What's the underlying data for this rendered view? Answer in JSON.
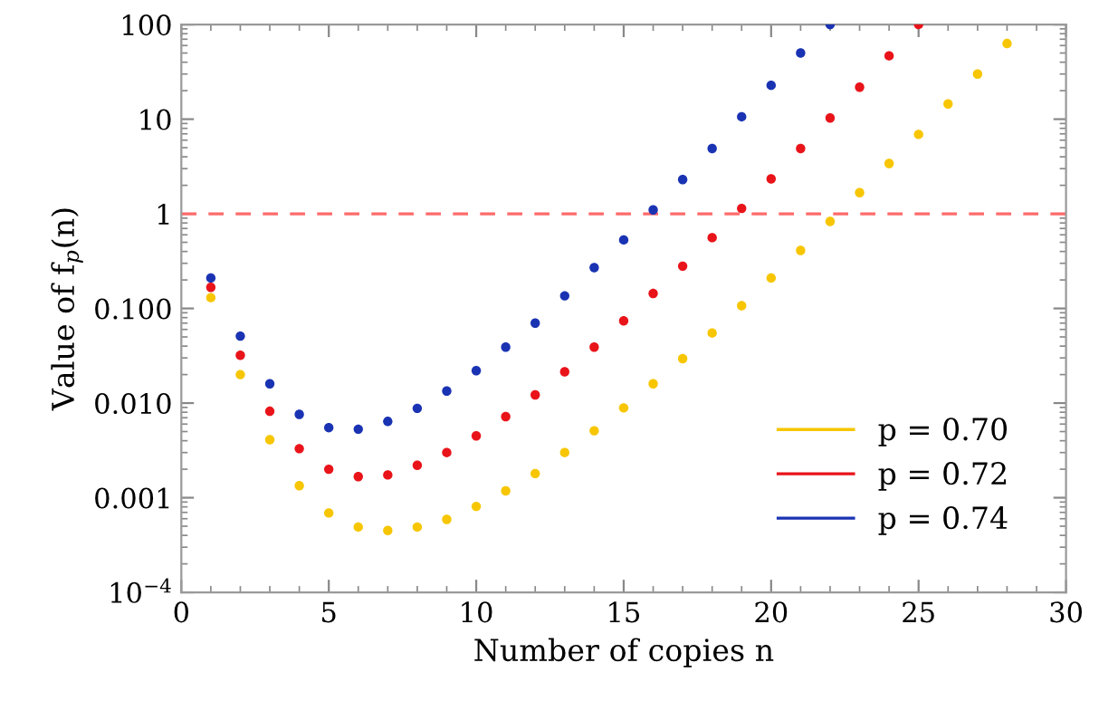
{
  "chart_data": {
    "type": "scatter",
    "xlabel": "Number of copies n",
    "ylabel": "Value of f$_{p}$(n)",
    "log": "y",
    "xlim": [
      0,
      30
    ],
    "xticks": [
      0,
      5,
      10,
      15,
      20,
      25,
      30
    ],
    "ylim": [
      0.0001,
      100
    ],
    "yticks": [
      {
        "value": 0.0001,
        "label": "10$^{−4}$"
      },
      {
        "value": 0.001,
        "label": "0.001"
      },
      {
        "value": 0.01,
        "label": "0.010"
      },
      {
        "value": 0.1,
        "label": "0.100"
      },
      {
        "value": 1,
        "label": "1"
      },
      {
        "value": 10,
        "label": "10"
      },
      {
        "value": 100,
        "label": "100"
      }
    ],
    "grid": false,
    "legend": "bottom right",
    "marker": "circle",
    "ref_lines": [
      {
        "axis": "y",
        "value": 1,
        "color": "#ff6b6b",
        "line_style": "dashed"
      }
    ],
    "series": [
      {
        "name": "p = 0.70",
        "color": "#f7c600",
        "x": [
          1,
          2,
          3,
          4,
          5,
          6,
          7,
          8,
          9,
          10,
          11,
          12,
          13,
          14,
          15,
          16,
          17,
          18,
          19,
          20,
          21,
          22,
          23,
          24,
          25,
          26,
          27,
          28
        ],
        "values": [
          0.13,
          0.02,
          0.0041,
          0.00134,
          0.00069,
          0.00049,
          0.00045,
          0.00049,
          0.00059,
          0.00081,
          0.00118,
          0.0018,
          0.003,
          0.0051,
          0.0089,
          0.016,
          0.0295,
          0.055,
          0.107,
          0.21,
          0.41,
          0.83,
          1.67,
          3.4,
          6.9,
          14.5,
          30,
          63
        ]
      },
      {
        "name": "p = 0.72",
        "color": "#e8141a",
        "x": [
          1,
          2,
          3,
          4,
          5,
          6,
          7,
          8,
          9,
          10,
          11,
          12,
          13,
          14,
          15,
          16,
          17,
          18,
          19,
          20,
          21,
          22,
          23,
          24,
          25
        ],
        "values": [
          0.167,
          0.032,
          0.0082,
          0.0033,
          0.002,
          0.00167,
          0.00174,
          0.0022,
          0.003,
          0.0045,
          0.0072,
          0.0122,
          0.0214,
          0.039,
          0.074,
          0.144,
          0.28,
          0.56,
          1.14,
          2.34,
          4.9,
          10.3,
          21.8,
          46.7,
          100
        ]
      },
      {
        "name": "p = 0.74",
        "color": "#1a33b3",
        "x": [
          1,
          2,
          3,
          4,
          5,
          6,
          7,
          8,
          9,
          10,
          11,
          12,
          13,
          14,
          15,
          16,
          17,
          18,
          19,
          20,
          21,
          22
        ],
        "values": [
          0.21,
          0.051,
          0.016,
          0.0076,
          0.0055,
          0.0053,
          0.0064,
          0.0088,
          0.0134,
          0.022,
          0.039,
          0.07,
          0.136,
          0.27,
          0.53,
          1.1,
          2.3,
          4.9,
          10.6,
          22.8,
          50,
          100
        ]
      }
    ]
  }
}
